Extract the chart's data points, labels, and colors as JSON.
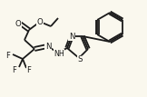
{
  "bg_color": "#faf8ee",
  "bond_color": "#1a1a1a",
  "bond_width": 1.3,
  "text_color": "#1a1a1a",
  "figure_width": 1.62,
  "figure_height": 1.07,
  "dpi": 100,
  "xlim": [
    0,
    162
  ],
  "ylim": [
    0,
    107
  ]
}
